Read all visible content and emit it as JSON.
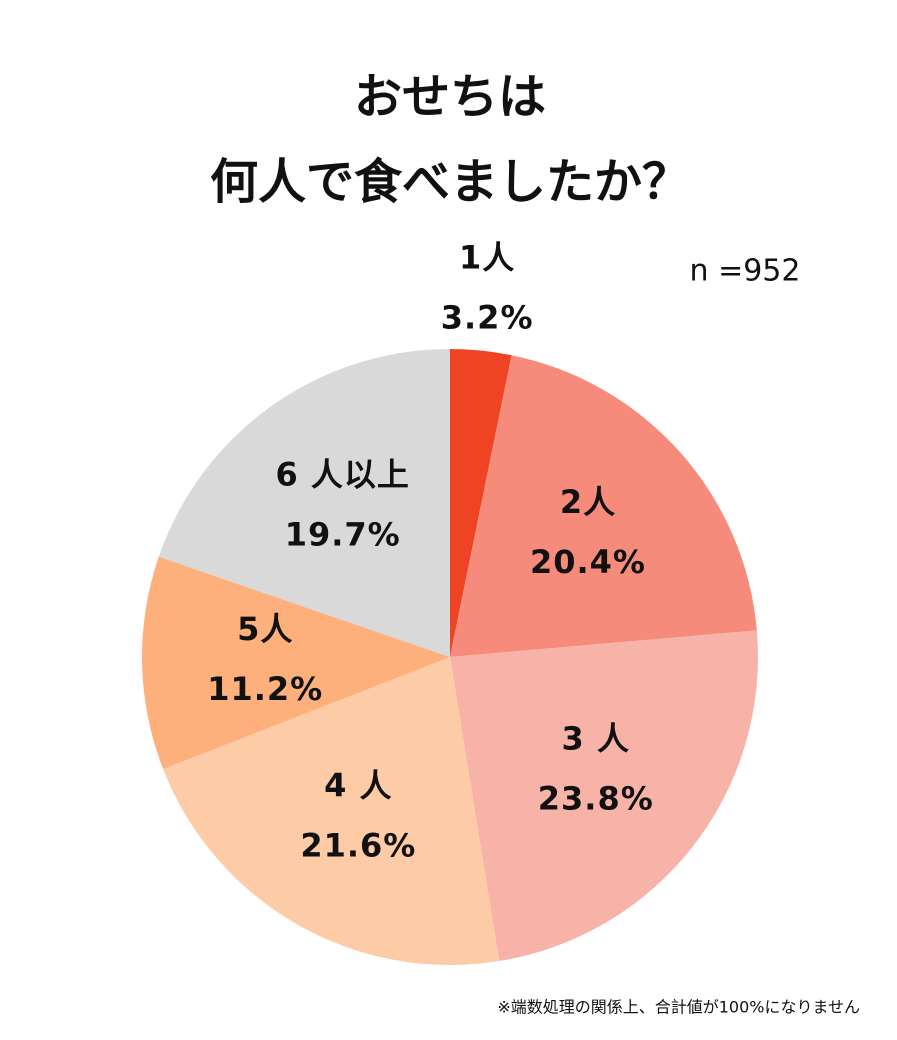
{
  "chart_data": {
    "type": "pie",
    "title": [
      "おせちは",
      "何人で食べましたか？"
    ],
    "subtitle": "n =952",
    "categories": [
      "1人",
      "2人",
      "3 人",
      "4 人",
      "5人",
      "6 人以上"
    ],
    "values": [
      3.2,
      20.4,
      23.8,
      21.6,
      11.2,
      19.7
    ],
    "value_labels": [
      "3.2%",
      "20.4%",
      "23.8%",
      "21.6%",
      "11.2%",
      "19.7%"
    ],
    "colors": [
      "#ee4423",
      "#f68b7b",
      "#f8b3a8",
      "#fdcba6",
      "#fdb07c",
      "#d9d9d9"
    ],
    "note": "※端数処理の関係上、合計値が100%になりません"
  }
}
